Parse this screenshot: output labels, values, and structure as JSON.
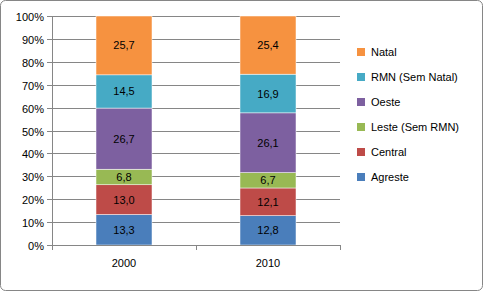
{
  "chart_data": {
    "type": "bar",
    "stacked": true,
    "data_labels": true,
    "grid": true,
    "legend": "right",
    "categories": [
      "2000",
      "2010"
    ],
    "ylim": [
      0,
      100
    ],
    "yticks": [
      {
        "value": 0,
        "label": "0%"
      },
      {
        "value": 10,
        "label": "10%"
      },
      {
        "value": 20,
        "label": "20%"
      },
      {
        "value": 30,
        "label": "30%"
      },
      {
        "value": 40,
        "label": "40%"
      },
      {
        "value": 50,
        "label": "50%"
      },
      {
        "value": 60,
        "label": "60%"
      },
      {
        "value": 70,
        "label": "70%"
      },
      {
        "value": 80,
        "label": "80%"
      },
      {
        "value": 90,
        "label": "90%"
      },
      {
        "value": 100,
        "label": "100%"
      }
    ],
    "series": [
      {
        "name": "Agreste",
        "color": "#4a7ebb",
        "values": [
          13.3,
          12.8
        ],
        "value_labels": [
          "13,3",
          "12,8"
        ]
      },
      {
        "name": "Central",
        "color": "#be4b48",
        "values": [
          13.0,
          12.1
        ],
        "value_labels": [
          "13,0",
          "12,1"
        ]
      },
      {
        "name": "Leste (Sem RMN)",
        "color": "#98b954",
        "values": [
          6.8,
          6.7
        ],
        "value_labels": [
          "6,8",
          "6,7"
        ]
      },
      {
        "name": "Oeste",
        "color": "#7d60a0",
        "values": [
          26.7,
          26.1
        ],
        "value_labels": [
          "26,7",
          "26,1"
        ]
      },
      {
        "name": "RMN (Sem Natal)",
        "color": "#46aac5",
        "values": [
          14.5,
          16.9
        ],
        "value_labels": [
          "14,5",
          "16,9"
        ]
      },
      {
        "name": "Natal",
        "color": "#f69240",
        "values": [
          25.7,
          25.4
        ],
        "value_labels": [
          "25,7",
          "25,4"
        ]
      }
    ]
  }
}
